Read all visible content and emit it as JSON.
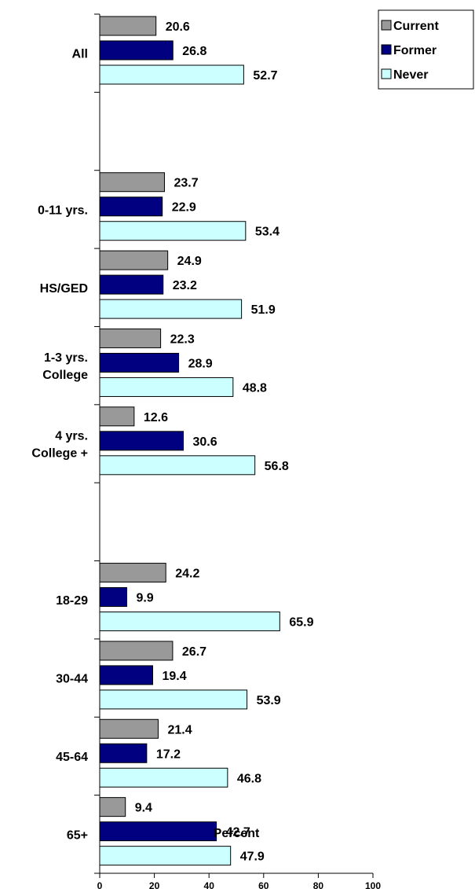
{
  "chart_data": {
    "type": "bar",
    "orientation": "horizontal",
    "categories": [
      "All",
      "",
      "0-11 yrs.",
      "HS/GED",
      "1-3 yrs.\nCollege",
      "4 yrs.\nCollege +",
      "",
      "18-29",
      "30-44",
      "45-64",
      "65+"
    ],
    "series": [
      {
        "name": "Current",
        "color": "#999999",
        "values": [
          20.6,
          null,
          23.7,
          24.9,
          22.3,
          12.6,
          null,
          24.2,
          26.7,
          21.4,
          9.4
        ]
      },
      {
        "name": "Former",
        "color": "#000080",
        "values": [
          26.8,
          null,
          22.9,
          23.2,
          28.9,
          30.6,
          null,
          9.9,
          19.4,
          17.2,
          42.7
        ]
      },
      {
        "name": "Never",
        "color": "#ccffff",
        "values": [
          52.7,
          null,
          53.4,
          51.9,
          48.8,
          56.8,
          null,
          65.9,
          53.9,
          46.8,
          47.9
        ]
      }
    ],
    "xlim": [
      0,
      100
    ],
    "xticks": [
      0,
      20,
      40,
      60,
      80,
      100
    ],
    "xlabel": "Percent",
    "ylabel": "",
    "title": "",
    "grid": false,
    "data_labels": true,
    "legend_position": "top-right"
  }
}
